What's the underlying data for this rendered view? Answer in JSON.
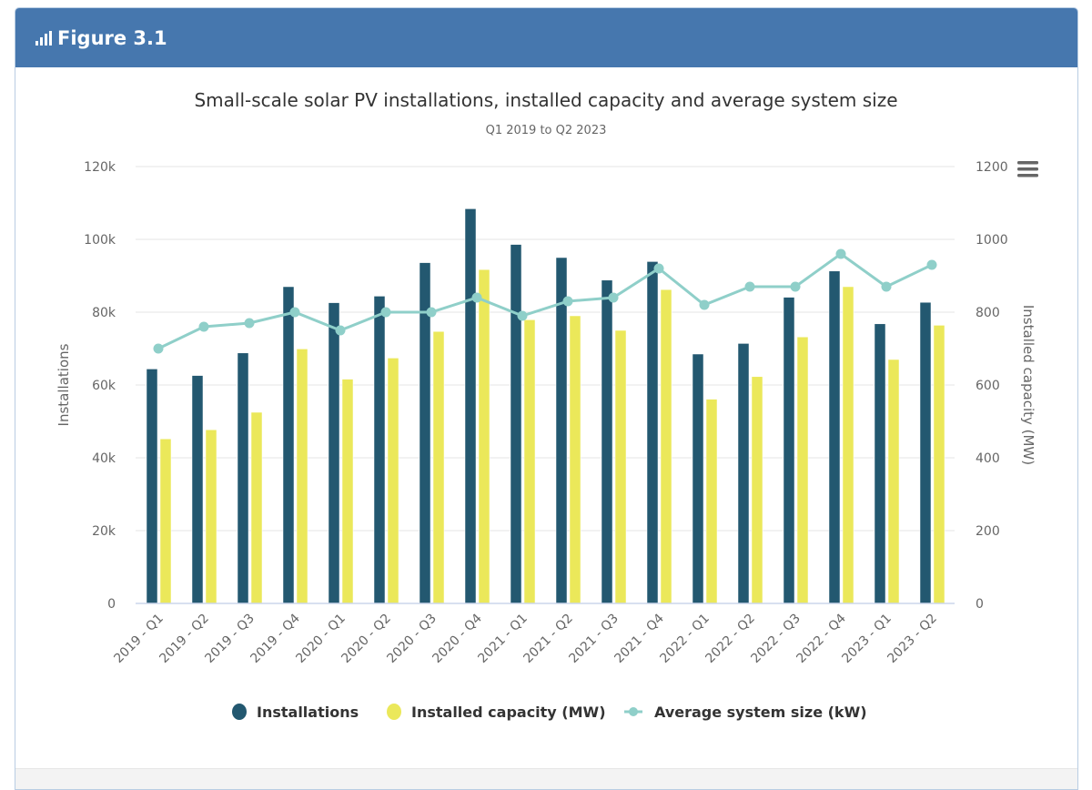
{
  "panel": {
    "title": "Figure 3.1",
    "icon": "bar-chart-icon"
  },
  "menu": {
    "icon": "hamburger-menu-icon"
  },
  "colors": {
    "header": "#4677ae",
    "installations": "#235870",
    "capacity": "#ebe85a",
    "avg_size": "#8fcfc9"
  },
  "chart_data": {
    "type": "bar",
    "title": "Small-scale solar PV installations, installed capacity and average system size",
    "subtitle": "Q1 2019 to Q2 2023",
    "xlabel": "",
    "ylabel": "Installations",
    "y2label": "Installed capacity (MW)",
    "ylim": [
      0,
      120000
    ],
    "y2lim": [
      0,
      1200
    ],
    "yticks": [
      "0",
      "20k",
      "40k",
      "60k",
      "80k",
      "100k",
      "120k"
    ],
    "y2ticks": [
      "0",
      "200",
      "400",
      "600",
      "800",
      "1000",
      "1200"
    ],
    "grid": true,
    "legend_position": "bottom",
    "categories": [
      "2019 - Q1",
      "2019 - Q2",
      "2019 - Q3",
      "2019 - Q4",
      "2020 - Q1",
      "2020 - Q2",
      "2020 - Q3",
      "2020 - Q4",
      "2021 - Q1",
      "2021 - Q2",
      "2021 - Q3",
      "2021 - Q4",
      "2022 - Q1",
      "2022 - Q2",
      "2022 - Q3",
      "2022 - Q4",
      "2023 - Q1",
      "2023 - Q2"
    ],
    "series": [
      {
        "name": "Installations",
        "type": "bar",
        "axis": "left",
        "values": [
          64400,
          62600,
          68800,
          87000,
          82600,
          84400,
          93600,
          108400,
          98600,
          95000,
          88800,
          93900,
          68500,
          71400,
          84100,
          91300,
          76800,
          82700
        ]
      },
      {
        "name": "Installed capacity (MW)",
        "type": "bar",
        "axis": "right",
        "values": [
          452,
          477,
          525,
          699,
          616,
          674,
          747,
          917,
          779,
          790,
          750,
          862,
          561,
          623,
          732,
          870,
          670,
          764
        ]
      },
      {
        "name": "Average system size (kW)",
        "type": "line",
        "axis": "right-scaled",
        "values": [
          7.0,
          7.6,
          7.7,
          8.0,
          7.5,
          8.0,
          8.0,
          8.4,
          7.9,
          8.3,
          8.4,
          9.2,
          8.2,
          8.7,
          8.7,
          9.6,
          8.7,
          9.3
        ]
      }
    ]
  }
}
